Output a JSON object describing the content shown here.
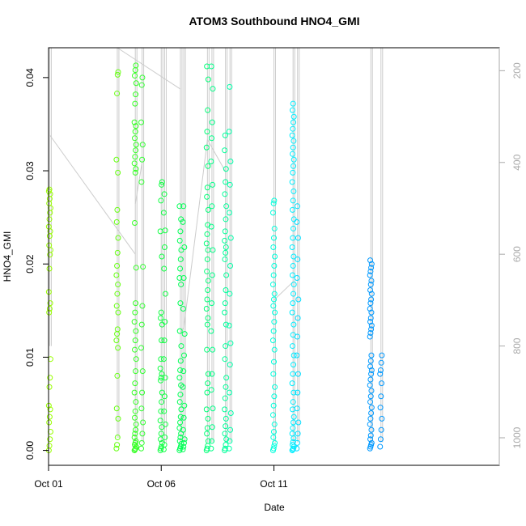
{
  "chart_data": {
    "type": "scatter",
    "title": "ATOM3 Southbound HNO4_GMI",
    "xlabel": "Date",
    "ylabel": "HNO4_GMI",
    "x_range_days": [
      0,
      20
    ],
    "ylim": [
      -0.0016,
      0.0432
    ],
    "y_ticks": [
      0.0,
      0.01,
      0.02,
      0.03,
      0.04
    ],
    "y_tick_labels": [
      "0.00",
      "0.01",
      "0.02",
      "0.03",
      "0.04"
    ],
    "x_ticks": [
      0,
      5,
      10
    ],
    "x_tick_labels": [
      "Oct 01",
      "Oct 06",
      "Oct 11"
    ],
    "secondary_axis": {
      "label": "",
      "ylim_inverted": [
        1060,
        150
      ],
      "ticks": [
        200,
        400,
        600,
        800,
        1000
      ],
      "tick_labels": [
        "200",
        "400",
        "600",
        "800",
        "1000"
      ],
      "color": "#aaaaaa"
    },
    "grid": false,
    "legend": "none",
    "profiles": [
      {
        "x": 0.05,
        "color": "#99ff00",
        "values": [
          0.0,
          0.0005,
          0.0012,
          0.002,
          0.003,
          0.0036,
          0.0044,
          0.0048,
          0.0068,
          0.0078,
          0.0098,
          0.0148,
          0.0152,
          0.0158,
          0.017,
          0.0195,
          0.021,
          0.0215,
          0.022,
          0.023,
          0.0235,
          0.024,
          0.0248,
          0.0255,
          0.026,
          0.0265,
          0.027,
          0.0275,
          0.0278,
          0.028
        ]
      },
      {
        "x": 3.05,
        "color": "#66ff11",
        "values": [
          0.0002,
          0.0006,
          0.0014,
          0.0034,
          0.0045,
          0.008,
          0.011,
          0.0118,
          0.0125,
          0.013,
          0.0148,
          0.0155,
          0.0168,
          0.0178,
          0.0188,
          0.0198,
          0.0212,
          0.0228,
          0.0245,
          0.0258,
          0.0298,
          0.0312,
          0.0383,
          0.0403,
          0.0406
        ]
      },
      {
        "x": 3.85,
        "color": "#33ff22",
        "values": [
          0.0,
          0.0001,
          0.0002,
          0.0004,
          0.0006,
          0.0008,
          0.001,
          0.0014,
          0.0018,
          0.0022,
          0.0028,
          0.0035,
          0.0042,
          0.0052,
          0.0062,
          0.0072,
          0.0085,
          0.0098,
          0.0108,
          0.0118,
          0.0128,
          0.0138,
          0.0148,
          0.0158,
          0.0196,
          0.0244,
          0.0298,
          0.0302,
          0.0308,
          0.0315,
          0.0322,
          0.0328,
          0.0335,
          0.0342,
          0.0348,
          0.0352,
          0.0372,
          0.0382,
          0.0394,
          0.0402,
          0.0408,
          0.0413
        ]
      },
      {
        "x": 4.15,
        "color": "#33ff33",
        "values": [
          0.0002,
          0.0008,
          0.0018,
          0.003,
          0.0045,
          0.0062,
          0.0085,
          0.011,
          0.0135,
          0.0155,
          0.0197,
          0.0288,
          0.0312,
          0.0328,
          0.0352,
          0.0392,
          0.04
        ]
      },
      {
        "x": 5.0,
        "color": "#11ff44",
        "values": [
          0.0,
          0.0002,
          0.0004,
          0.0008,
          0.0012,
          0.0018,
          0.0025,
          0.0032,
          0.0042,
          0.0052,
          0.0062,
          0.0075,
          0.0078,
          0.0082,
          0.0088,
          0.0098,
          0.0118,
          0.0135,
          0.0142,
          0.0148,
          0.0208,
          0.0235,
          0.0268,
          0.0285,
          0.0288
        ]
      },
      {
        "x": 5.15,
        "color": "#11ff44",
        "values": [
          0.0001,
          0.0006,
          0.0014,
          0.0028,
          0.0042,
          0.0058,
          0.0078,
          0.0098,
          0.0118,
          0.0138,
          0.0168,
          0.0195,
          0.0218,
          0.0236,
          0.0255,
          0.0275
        ]
      },
      {
        "x": 5.85,
        "color": "#00ff55",
        "values": [
          0.0,
          0.0002,
          0.0004,
          0.0007,
          0.001,
          0.0014,
          0.0018,
          0.0024,
          0.003,
          0.0036,
          0.0044,
          0.0052,
          0.006,
          0.007,
          0.0078,
          0.0086,
          0.0096,
          0.0112,
          0.0128,
          0.0158,
          0.0178,
          0.0185,
          0.0195,
          0.0205,
          0.0215,
          0.0225,
          0.0235,
          0.0248,
          0.0262
        ]
      },
      {
        "x": 6.0,
        "color": "#00ff55",
        "values": [
          0.0001,
          0.0004,
          0.0008,
          0.0012,
          0.0022,
          0.0035,
          0.0048,
          0.0068,
          0.0085,
          0.0102,
          0.0125,
          0.0152,
          0.0185,
          0.0218,
          0.0245,
          0.0262
        ]
      },
      {
        "x": 7.05,
        "color": "#00ff77",
        "values": [
          0.0,
          0.0002,
          0.0005,
          0.001,
          0.0018,
          0.0024,
          0.0034,
          0.0044,
          0.0062,
          0.0072,
          0.0082,
          0.0108,
          0.0135,
          0.0142,
          0.0152,
          0.0162,
          0.0172,
          0.0182,
          0.0192,
          0.0205,
          0.0215,
          0.0222,
          0.0232,
          0.0242,
          0.0258,
          0.0272,
          0.0282,
          0.0305,
          0.0325,
          0.0342,
          0.0365,
          0.0398,
          0.0412
        ]
      },
      {
        "x": 7.25,
        "color": "#00ff88",
        "values": [
          0.0002,
          0.001,
          0.0025,
          0.0045,
          0.0065,
          0.0082,
          0.0108,
          0.0128,
          0.0158,
          0.0188,
          0.0215,
          0.024,
          0.0262,
          0.0285,
          0.031,
          0.0335,
          0.0352,
          0.0388,
          0.0412
        ]
      },
      {
        "x": 7.85,
        "color": "#00ff99",
        "values": [
          0.0,
          0.0002,
          0.0006,
          0.0012,
          0.0018,
          0.0026,
          0.0034,
          0.0044,
          0.0056,
          0.0068,
          0.0078,
          0.0098,
          0.0112,
          0.0135,
          0.0148,
          0.0158,
          0.0172,
          0.0188,
          0.0205,
          0.0212,
          0.0218,
          0.0225,
          0.0235,
          0.0248,
          0.0262,
          0.0275,
          0.0288,
          0.0302,
          0.0322,
          0.0338
        ]
      },
      {
        "x": 8.05,
        "color": "#00ffaa",
        "values": [
          0.0002,
          0.001,
          0.0022,
          0.004,
          0.0062,
          0.0092,
          0.0115,
          0.0134,
          0.0168,
          0.0198,
          0.0228,
          0.0255,
          0.0285,
          0.031,
          0.0342,
          0.039
        ]
      },
      {
        "x": 10.0,
        "color": "#00ffdd",
        "values": [
          0.0,
          0.0002,
          0.0005,
          0.0008,
          0.0014,
          0.002,
          0.0028,
          0.0038,
          0.0048,
          0.0058,
          0.0068,
          0.0082,
          0.0095,
          0.0108,
          0.0118,
          0.0128,
          0.0138,
          0.0148,
          0.0155,
          0.0162,
          0.0168,
          0.0178,
          0.0188,
          0.0198,
          0.0208,
          0.0218,
          0.0228,
          0.0238,
          0.0255,
          0.0265,
          0.0268
        ]
      },
      {
        "x": 10.85,
        "color": "#00eeff",
        "values": [
          0.0,
          0.0001,
          0.0002,
          0.0004,
          0.0006,
          0.0009,
          0.0013,
          0.0018,
          0.0024,
          0.003,
          0.0036,
          0.0044,
          0.0052,
          0.0062,
          0.0072,
          0.0082,
          0.0092,
          0.0102,
          0.0112,
          0.0124,
          0.0135,
          0.0148,
          0.0158,
          0.0168,
          0.0178,
          0.0188,
          0.0198,
          0.0208,
          0.0218,
          0.0228,
          0.0238,
          0.0248,
          0.0258,
          0.0268,
          0.0278,
          0.0288,
          0.0298,
          0.0305,
          0.0312,
          0.0318,
          0.0325,
          0.0332,
          0.0338,
          0.0345,
          0.0352,
          0.0358,
          0.0365,
          0.0372
        ]
      },
      {
        "x": 11.05,
        "color": "#00ddff",
        "values": [
          0.0002,
          0.0008,
          0.0018,
          0.003,
          0.0045,
          0.0062,
          0.0082,
          0.0102,
          0.0122,
          0.0142,
          0.0162,
          0.0185,
          0.0205,
          0.0228,
          0.0245,
          0.0262
        ]
      },
      {
        "x": 14.3,
        "color": "#0099ff",
        "values": [
          0.0002,
          0.0004,
          0.0006,
          0.0008,
          0.0012,
          0.0016,
          0.0022,
          0.0028,
          0.0034,
          0.004,
          0.0046,
          0.0052,
          0.0058,
          0.0064,
          0.007,
          0.0076,
          0.0082,
          0.0086,
          0.009,
          0.0096,
          0.0102,
          0.0122,
          0.0126,
          0.013,
          0.0134,
          0.0138,
          0.0142,
          0.0148,
          0.0152,
          0.0158,
          0.0162,
          0.0168,
          0.0172,
          0.0178,
          0.0182,
          0.0188,
          0.0192,
          0.0196,
          0.02,
          0.0204
        ]
      },
      {
        "x": 14.75,
        "color": "#0099ff",
        "values": [
          0.0004,
          0.0012,
          0.0022,
          0.0034,
          0.0046,
          0.0058,
          0.0072,
          0.0082,
          0.0086,
          0.0094,
          0.0102
        ]
      }
    ],
    "pressure_trace": {
      "color": "#cccccc",
      "segments": [
        {
          "x": 0.05,
          "p_bottom": 800,
          "p_top": 150
        },
        {
          "x": 3.05,
          "p_bottom": 1000,
          "p_top": 150
        },
        {
          "x": 3.85,
          "p_bottom": 1010,
          "p_top": 150
        },
        {
          "x": 4.15,
          "p_bottom": 1010,
          "p_top": 150
        },
        {
          "x": 5.0,
          "p_bottom": 1010,
          "p_top": 150
        },
        {
          "x": 5.15,
          "p_bottom": 1010,
          "p_top": 150
        },
        {
          "x": 5.85,
          "p_bottom": 1010,
          "p_top": 150
        },
        {
          "x": 6.0,
          "p_bottom": 1010,
          "p_top": 150
        },
        {
          "x": 7.05,
          "p_bottom": 1010,
          "p_top": 150
        },
        {
          "x": 7.25,
          "p_bottom": 1010,
          "p_top": 150
        },
        {
          "x": 7.85,
          "p_bottom": 1010,
          "p_top": 150
        },
        {
          "x": 8.05,
          "p_bottom": 1010,
          "p_top": 150
        },
        {
          "x": 10.0,
          "p_bottom": 1010,
          "p_top": 150
        },
        {
          "x": 10.85,
          "p_bottom": 1010,
          "p_top": 150
        },
        {
          "x": 11.05,
          "p_bottom": 1010,
          "p_top": 150
        },
        {
          "x": 14.3,
          "p_bottom": 1010,
          "p_top": 150
        },
        {
          "x": 14.75,
          "p_bottom": 1010,
          "p_top": 150
        }
      ],
      "transit_lines": [
        [
          [
            0.05,
            340
          ],
          [
            3.85,
            600
          ]
        ],
        [
          [
            3.05,
            150
          ],
          [
            5.85,
            240
          ]
        ],
        [
          [
            3.85,
            490
          ],
          [
            4.15,
            400
          ]
        ],
        [
          [
            5.85,
            770
          ],
          [
            6.0,
            760
          ]
        ],
        [
          [
            6.0,
            760
          ],
          [
            7.05,
            350
          ]
        ],
        [
          [
            7.05,
            350
          ],
          [
            7.85,
            420
          ]
        ],
        [
          [
            10.0,
            700
          ],
          [
            10.85,
            660
          ]
        ]
      ]
    }
  }
}
